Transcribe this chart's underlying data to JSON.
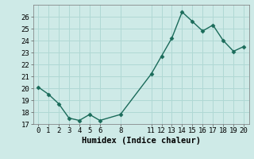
{
  "x": [
    0,
    1,
    2,
    3,
    4,
    5,
    6,
    8,
    11,
    12,
    13,
    14,
    15,
    16,
    17,
    18,
    19,
    20
  ],
  "y": [
    20.1,
    19.5,
    18.7,
    17.5,
    17.3,
    17.8,
    17.3,
    17.8,
    21.2,
    22.7,
    24.2,
    26.4,
    25.6,
    24.8,
    25.3,
    24.0,
    23.1,
    23.5
  ],
  "line_color": "#1a6b5a",
  "marker": "D",
  "marker_size": 2.5,
  "bg_color": "#ceeae7",
  "grid_color": "#b0d8d4",
  "xlabel": "Humidex (Indice chaleur)",
  "ylim": [
    17,
    27
  ],
  "xlim": [
    -0.5,
    20.5
  ],
  "yticks": [
    17,
    18,
    19,
    20,
    21,
    22,
    23,
    24,
    25,
    26
  ],
  "xticks": [
    0,
    1,
    2,
    3,
    4,
    5,
    6,
    8,
    11,
    12,
    13,
    14,
    15,
    16,
    17,
    18,
    19,
    20
  ],
  "xlabel_fontsize": 7.5,
  "tick_fontsize": 6.5,
  "line_width": 1.0
}
